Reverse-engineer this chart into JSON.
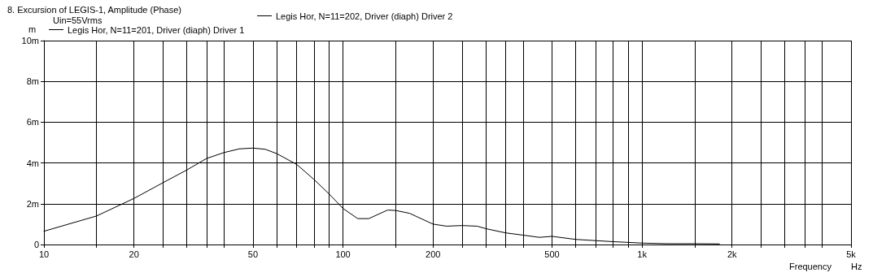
{
  "chart_data": {
    "type": "line",
    "title": "8. Excursion of LEGIS-1, Amplitude (Phase)",
    "ylabel": "m",
    "xlabel": "Frequency",
    "annotations": [
      "Uin=55Vrms",
      "Hz"
    ],
    "log": "x",
    "grid": true,
    "legend": "top left",
    "marker": "none",
    "line_style": "solid",
    "xlim": [
      10,
      5000
    ],
    "ylim": [
      0,
      10
    ],
    "xticks": [
      10,
      {
        "value": 15,
        "label": null
      },
      20,
      {
        "value": 25,
        "label": null
      },
      {
        "value": 30,
        "label": null
      },
      {
        "value": 35,
        "label": null
      },
      {
        "value": 40,
        "label": null
      },
      50,
      {
        "value": 60,
        "label": null
      },
      {
        "value": 70,
        "label": null
      },
      {
        "value": 80,
        "label": null
      },
      {
        "value": 90,
        "label": null
      },
      100,
      {
        "value": 150,
        "label": null
      },
      200,
      {
        "value": 250,
        "label": null
      },
      {
        "value": 300,
        "label": null
      },
      {
        "value": 350,
        "label": null
      },
      {
        "value": 400,
        "label": null
      },
      500,
      {
        "value": 600,
        "label": null
      },
      {
        "value": 700,
        "label": null
      },
      {
        "value": 800,
        "label": null
      },
      {
        "value": 900,
        "label": null
      },
      {
        "value": 1000,
        "label": "1k"
      },
      {
        "value": 1500,
        "label": null
      },
      {
        "value": 2000,
        "label": "2k"
      },
      {
        "value": 2500,
        "label": null
      },
      {
        "value": 3000,
        "label": null
      },
      {
        "value": 3500,
        "label": null
      },
      {
        "value": 4000,
        "label": null
      },
      {
        "value": 5000,
        "label": "5k"
      }
    ],
    "yticks": [
      0,
      {
        "value": 2,
        "label": "2m"
      },
      {
        "value": 4,
        "label": "4m"
      },
      {
        "value": 6,
        "label": "6m"
      },
      {
        "value": 8,
        "label": "8m"
      },
      {
        "value": 10,
        "label": "10m"
      }
    ],
    "x": [
      10,
      15,
      20,
      25,
      30,
      35,
      40,
      45,
      50,
      55,
      60,
      70,
      80,
      90,
      100,
      112,
      122,
      141,
      150,
      167,
      200,
      222,
      250,
      281,
      300,
      350,
      400,
      454,
      500,
      600,
      700,
      800,
      1000,
      1214,
      1500,
      1815
    ],
    "series": [
      {
        "name": "Legis Hor, N=11=201, Driver (diaph) Driver 1",
        "color": "#000000",
        "values": [
          0.65,
          1.4,
          2.26,
          3.03,
          3.65,
          4.22,
          4.51,
          4.69,
          4.73,
          4.67,
          4.46,
          3.93,
          3.19,
          2.47,
          1.77,
          1.27,
          1.27,
          1.69,
          1.67,
          1.53,
          1.0,
          0.9,
          0.93,
          0.9,
          0.78,
          0.57,
          0.46,
          0.35,
          0.4,
          0.25,
          0.19,
          0.14,
          0.07,
          0.04,
          0.04,
          0.03
        ]
      },
      {
        "name": "Legis Hor, N=11=202, Driver (diaph) Driver 2",
        "color": "#000000",
        "values": [
          null,
          null,
          null,
          null,
          null,
          null,
          null,
          null,
          null,
          null,
          null,
          null,
          null,
          null,
          null,
          null,
          null,
          null,
          null,
          null,
          null,
          null,
          null,
          null,
          null,
          null,
          null,
          null,
          null,
          null,
          null,
          null,
          null,
          null,
          null,
          null
        ]
      }
    ]
  }
}
